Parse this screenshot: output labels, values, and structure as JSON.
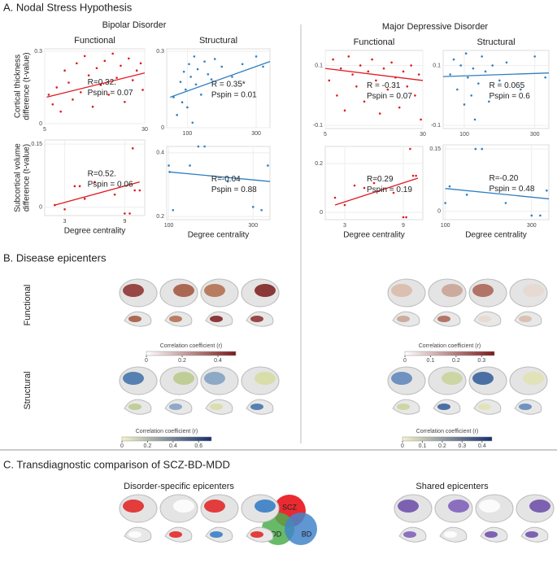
{
  "section_a": {
    "title": "A. Nodal Stress Hypothesis",
    "groups": [
      "Bipolar Disorder",
      "Major Depressive Disorder"
    ]
  },
  "chart_data": [
    {
      "type": "scatter",
      "title": "Functional",
      "y_label": [
        "Cortical thickness",
        "difference (t-value)"
      ],
      "color": "#e0191f",
      "x": [
        6,
        7,
        8,
        9,
        10,
        11,
        12,
        13,
        14,
        15,
        16,
        17,
        18,
        19,
        20,
        21,
        22,
        23,
        24,
        25,
        26,
        27,
        28,
        29,
        29.5
      ],
      "values": [
        0.12,
        0.08,
        0.15,
        0.05,
        0.22,
        0.17,
        0.1,
        0.25,
        0.13,
        0.28,
        0.2,
        0.07,
        0.23,
        0.16,
        0.26,
        0.12,
        0.29,
        0.19,
        0.24,
        0.09,
        0.27,
        0.18,
        0.22,
        0.25,
        0.14
      ],
      "fit_x": [
        5.5,
        30
      ],
      "fit_y": [
        0.11,
        0.21
      ],
      "xlim": [
        5,
        30
      ],
      "xticks": [
        5,
        30
      ],
      "ylim": [
        0,
        0.31
      ],
      "yticks": [
        0,
        0.3
      ],
      "annotations": [
        "R=0.32.",
        "Pspin = 0.07"
      ]
    },
    {
      "type": "scatter",
      "title": "Structural",
      "color": "#2f7fc1",
      "x": [
        60,
        70,
        80,
        85,
        90,
        95,
        100,
        105,
        110,
        115,
        120,
        125,
        130,
        140,
        150,
        160,
        170,
        180,
        200,
        230,
        260,
        300,
        320
      ],
      "values": [
        0.12,
        0.05,
        0.18,
        0.1,
        0.22,
        0.15,
        0.08,
        0.25,
        0.2,
        0.02,
        0.28,
        0.17,
        0.23,
        0.13,
        0.26,
        0.21,
        0.19,
        0.27,
        0.24,
        0.2,
        0.25,
        0.28,
        0.24
      ],
      "fit_x": [
        50,
        340
      ],
      "fit_y": [
        0.12,
        0.26
      ],
      "xlim": [
        40,
        340
      ],
      "xticks": [
        100,
        300
      ],
      "ylim": [
        0,
        0.31
      ],
      "yticks": [
        0,
        0.3
      ],
      "annotations": [
        "R = 0.35*",
        "Pspin = 0.01"
      ]
    },
    {
      "type": "scatter",
      "y_label": [
        "Subcortical volume",
        "difference (t-value)"
      ],
      "x_label": "Degree centrality",
      "color": "#e0191f",
      "x": [
        2,
        3,
        4,
        4.5,
        5,
        6,
        8,
        9,
        9.5,
        9.8,
        10,
        10.5
      ],
      "values": [
        0.005,
        -0.005,
        0.05,
        0.05,
        0.02,
        0.06,
        0.03,
        -0.015,
        -0.015,
        0.14,
        0.04,
        0.04
      ],
      "fit_x": [
        2,
        10.5
      ],
      "fit_y": [
        0.005,
        0.06
      ],
      "xlim": [
        1,
        11
      ],
      "xticks": [
        3,
        9
      ],
      "ylim": [
        -0.02,
        0.16
      ],
      "yticks": [
        0,
        0.15
      ],
      "annotations": [
        "R=0.52.",
        "Pspin = 0.06"
      ]
    },
    {
      "type": "scatter",
      "x_label": "Degree centrality",
      "color": "#2f7fc1",
      "x": [
        100,
        102,
        110,
        150,
        170,
        185,
        240,
        300,
        320,
        335
      ],
      "values": [
        0.36,
        0.34,
        0.22,
        0.36,
        0.42,
        0.42,
        0.31,
        0.23,
        0.22,
        0.36
      ],
      "fit_x": [
        100,
        340
      ],
      "fit_y": [
        0.34,
        0.31
      ],
      "xlim": [
        95,
        340
      ],
      "xticks": [
        100,
        300
      ],
      "ylim": [
        0.19,
        0.42
      ],
      "yticks": [
        0.2,
        0.4
      ],
      "annotations": [
        "R=-0.04",
        "Pspin = 0.88"
      ]
    },
    {
      "type": "scatter",
      "title": "Functional",
      "color": "#e0191f",
      "x": [
        6,
        7,
        8,
        9,
        10,
        11,
        12,
        13,
        14,
        15,
        16,
        17,
        18,
        19,
        20,
        21,
        22,
        23,
        24,
        25,
        26,
        27,
        28,
        29,
        29.5
      ],
      "values": [
        0.05,
        0.12,
        0.0,
        0.09,
        -0.05,
        0.13,
        0.07,
        0.03,
        0.1,
        -0.02,
        0.08,
        0.12,
        0.05,
        -0.06,
        0.09,
        0.02,
        0.11,
        0.06,
        -0.04,
        0.08,
        0.03,
        0.1,
        0.0,
        0.07,
        -0.08
      ],
      "fit_x": [
        5,
        30
      ],
      "fit_y": [
        0.09,
        0.05
      ],
      "xlim": [
        5,
        30
      ],
      "xticks": [
        5,
        30
      ],
      "ylim": [
        -0.11,
        0.15
      ],
      "yticks": [
        -0.1,
        0.1
      ],
      "annotations": [
        "R = -0.31",
        "Pspin = 0.07"
      ]
    },
    {
      "type": "scatter",
      "title": "Structural",
      "color": "#2f7fc1",
      "x": [
        60,
        70,
        80,
        90,
        100,
        105,
        110,
        120,
        125,
        130,
        140,
        150,
        160,
        170,
        180,
        200,
        220,
        260,
        300,
        330
      ],
      "values": [
        0.07,
        0.12,
        0.02,
        0.1,
        -0.03,
        0.14,
        0.06,
        0.0,
        0.09,
        -0.08,
        0.04,
        0.13,
        0.08,
        -0.02,
        0.1,
        0.05,
        0.11,
        0.02,
        0.13,
        0.06
      ],
      "fit_x": [
        40,
        340
      ],
      "fit_y": [
        0.063,
        0.075
      ],
      "xlim": [
        40,
        340
      ],
      "xticks": [
        100,
        300
      ],
      "ylim": [
        -0.11,
        0.15
      ],
      "yticks": [
        -0.1,
        0.1
      ],
      "annotations": [
        "R = 0.065",
        "Pspin = 0.6"
      ]
    },
    {
      "type": "scatter",
      "x_label": "Degree centrality",
      "color": "#e0191f",
      "x": [
        2,
        3,
        4,
        5,
        6,
        8,
        9,
        9.3,
        9.7,
        10,
        10.3
      ],
      "values": [
        0.06,
        0.03,
        0.11,
        0.1,
        0.12,
        0.08,
        -0.02,
        -0.02,
        0.26,
        0.15,
        0.15
      ],
      "fit_x": [
        2,
        10.5
      ],
      "fit_y": [
        0.03,
        0.14
      ],
      "xlim": [
        1,
        11
      ],
      "xticks": [
        3,
        9
      ],
      "ylim": [
        -0.03,
        0.27
      ],
      "yticks": [
        0,
        0.2
      ],
      "annotations": [
        "R=0.29",
        "Pspin = 0.19"
      ]
    },
    {
      "type": "scatter",
      "x_label": "Degree centrality",
      "color": "#2f7fc1",
      "x": [
        100,
        110,
        150,
        170,
        185,
        240,
        300,
        320,
        335
      ],
      "values": [
        0.02,
        0.06,
        0.04,
        0.15,
        0.15,
        0.02,
        -0.01,
        -0.01,
        0.05
      ],
      "fit_x": [
        100,
        340
      ],
      "fit_y": [
        0.055,
        0.03
      ],
      "xlim": [
        95,
        340
      ],
      "xticks": [
        100,
        300
      ],
      "ylim": [
        -0.02,
        0.16
      ],
      "yticks": [
        0,
        0.15
      ],
      "annotations": [
        "R=-0.20",
        "Pspin = 0.48"
      ]
    }
  ],
  "section_b": {
    "title": "B. Disease epicenters",
    "rows": [
      "Functional",
      "Structural"
    ],
    "colorbars": [
      {
        "label": "Correlation coefficient (r)",
        "lim": [
          0,
          0.5
        ],
        "ticks": [
          0,
          0.2,
          0.4
        ],
        "colors": [
          "#ffffff",
          "#7a1a1a"
        ]
      },
      {
        "label": "Correlation coefficient (r)",
        "lim": [
          0,
          0.35
        ],
        "ticks": [
          0,
          0.1,
          0.2,
          0.3
        ],
        "colors": [
          "#ffffff",
          "#7a1a1a"
        ]
      },
      {
        "label": "Correlation coefficient (r)",
        "lim": [
          0,
          0.7
        ],
        "ticks": [
          0,
          0.2,
          0.4,
          0.6
        ],
        "colors": [
          "#f6f3c8",
          "#14306e"
        ]
      },
      {
        "label": "Correlation coefficient (r)",
        "lim": [
          0,
          0.45
        ],
        "ticks": [
          0,
          0.1,
          0.2,
          0.3,
          0.4
        ],
        "colors": [
          "#f6f3c8",
          "#14306e"
        ]
      }
    ]
  },
  "section_c": {
    "title": "C. Transdiagnostic comparison of SCZ-BD-MDD",
    "panels": [
      "Disorder-specific epicenters",
      "Shared epicenters"
    ],
    "venn": [
      "SCZ",
      "MDD",
      "BD"
    ]
  }
}
